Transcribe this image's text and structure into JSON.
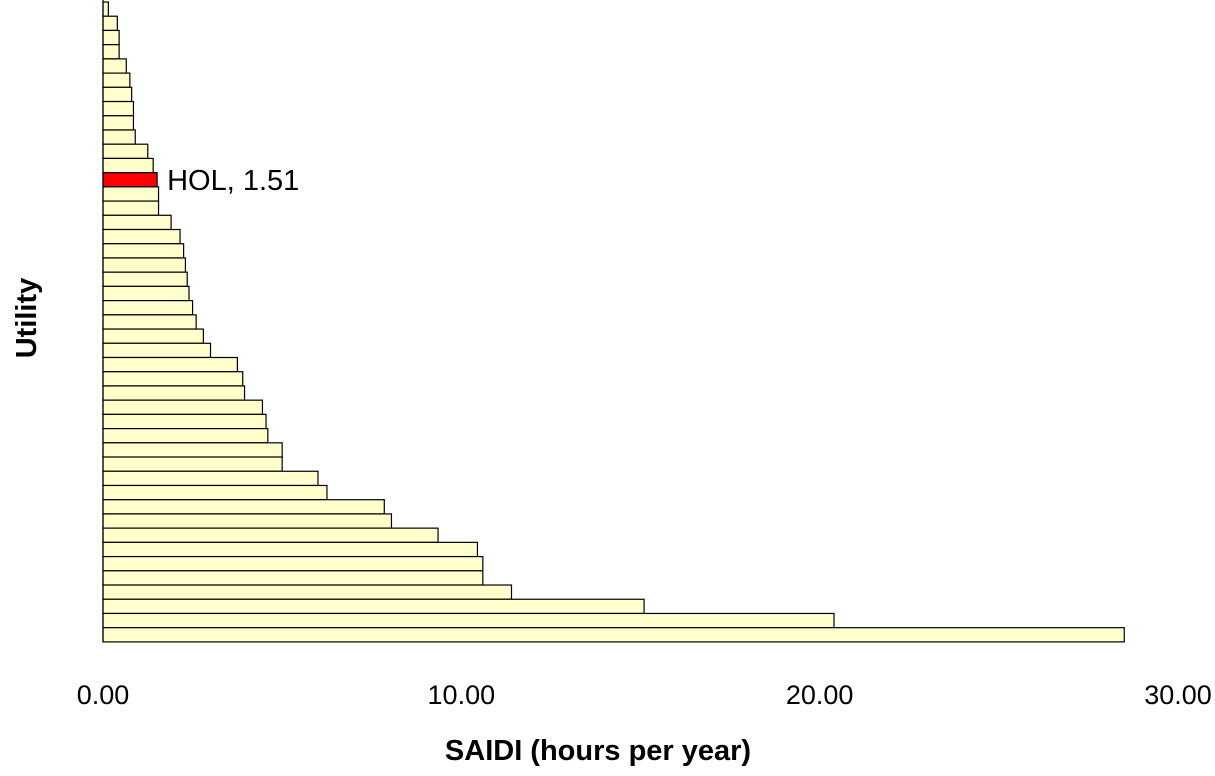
{
  "chart_data": {
    "type": "bar",
    "orientation": "horizontal",
    "xlabel": "SAIDI   (hours per year)",
    "ylabel": "Utility",
    "xlim": [
      0,
      30
    ],
    "xticks": [
      "0.00",
      "10.00",
      "20.00",
      "30.00"
    ],
    "grid": false,
    "legend": "none",
    "bar_color": "#ffffcc",
    "highlight_color": "#ff0000",
    "highlight_index": 12,
    "annotation": {
      "text": "HOL, 1.51",
      "bar_index": 12
    },
    "values": [
      0.15,
      0.4,
      0.45,
      0.45,
      0.65,
      0.75,
      0.8,
      0.85,
      0.85,
      0.9,
      1.25,
      1.4,
      1.51,
      1.55,
      1.55,
      1.9,
      2.15,
      2.25,
      2.3,
      2.35,
      2.4,
      2.5,
      2.6,
      2.8,
      3.0,
      3.75,
      3.9,
      3.95,
      4.45,
      4.55,
      4.6,
      5.0,
      5.0,
      6.0,
      6.25,
      7.85,
      8.05,
      9.35,
      10.45,
      10.6,
      10.6,
      11.4,
      15.1,
      20.4,
      28.5
    ]
  }
}
